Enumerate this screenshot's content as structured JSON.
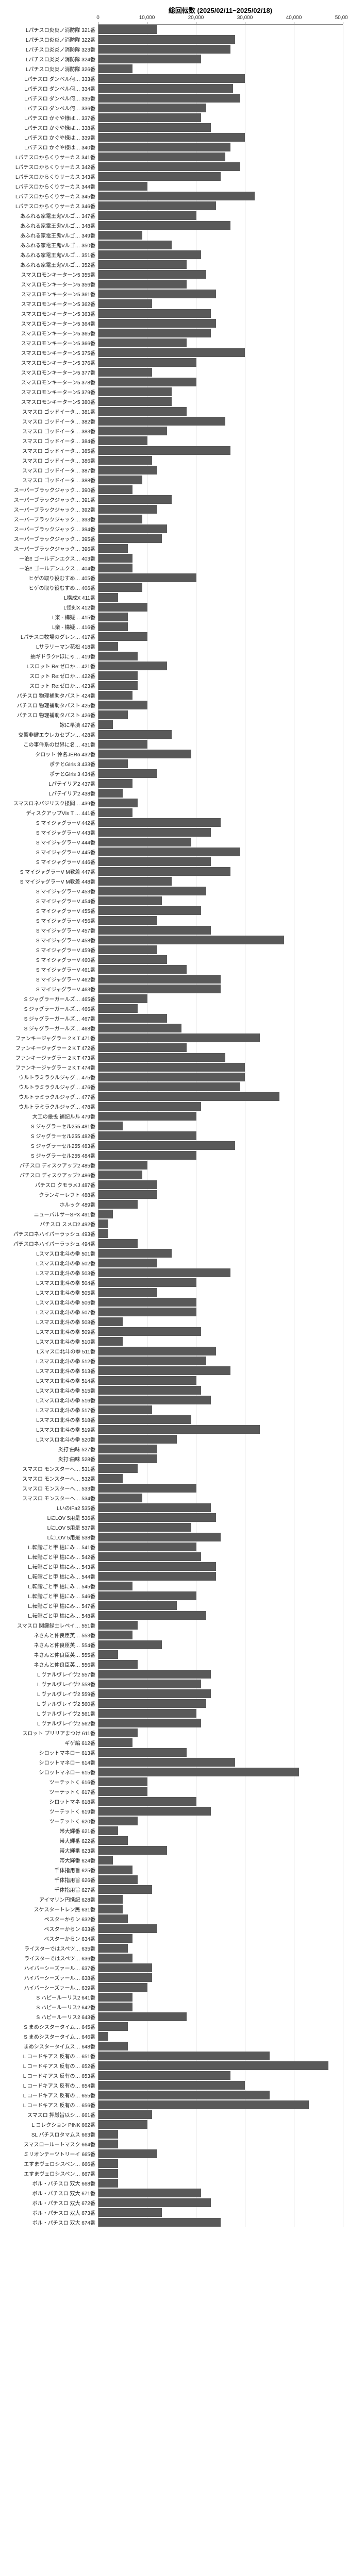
{
  "chart": {
    "type": "bar",
    "title": "総回転数 (2025/02/11~2025/02/18)",
    "title_fontsize": 13,
    "xmin": 0,
    "xmax": 50000,
    "xtick_step": 10000,
    "xticks": [
      0,
      10000,
      20000,
      30000,
      40000,
      50000
    ],
    "bar_color": "#595959",
    "background_color": "#ffffff",
    "grid_color": "#dddddd",
    "axis_color": "#888888",
    "label_fontsize": 10,
    "tick_fontsize": 10,
    "rows": [
      {
        "label": "Lパチスロ炎炎ノ消防隊 321番",
        "value": 12000
      },
      {
        "label": "Lパチスロ炎炎ノ消防隊 322番",
        "value": 28000
      },
      {
        "label": "Lパチスロ炎炎ノ消防隊 323番",
        "value": 27000
      },
      {
        "label": "Lパチスロ炎炎ノ消防隊 324番",
        "value": 21000
      },
      {
        "label": "Lパチスロ炎炎ノ消防隊 326番",
        "value": 7000
      },
      {
        "label": "Lパチスロ ダンベル何… 333番",
        "value": 30000
      },
      {
        "label": "Lパチスロ ダンベル何… 334番",
        "value": 27500
      },
      {
        "label": "Lパチスロ ダンベル何… 335番",
        "value": 29000
      },
      {
        "label": "Lパチスロ ダンベル何… 336番",
        "value": 22000
      },
      {
        "label": "Lパチスロ かぐや様は… 337番",
        "value": 21000
      },
      {
        "label": "Lパチスロ かぐや様は… 338番",
        "value": 23000
      },
      {
        "label": "Lパチスロ かぐや様は… 339番",
        "value": 30000
      },
      {
        "label": "Lパチスロ かぐや様は… 340番",
        "value": 27000
      },
      {
        "label": "Lパチスロからくりサーカス 341番",
        "value": 26000
      },
      {
        "label": "Lパチスロからくりサーカス 342番",
        "value": 29000
      },
      {
        "label": "Lパチスロからくりサーカス 343番",
        "value": 25000
      },
      {
        "label": "Lパチスロからくりサーカス 344番",
        "value": 10000
      },
      {
        "label": "Lパチスロからくりサーカス 345番",
        "value": 32000
      },
      {
        "label": "Lパチスロからくりサーカス 346番",
        "value": 24000
      },
      {
        "label": "あふれる家電王鬼Vルゴ… 347番",
        "value": 20000
      },
      {
        "label": "あふれる家電王鬼Vルゴ… 348番",
        "value": 27000
      },
      {
        "label": "あふれる家電王鬼Vルゴ… 349番",
        "value": 9000
      },
      {
        "label": "あふれる家電王鬼Vルゴ… 350番",
        "value": 15000
      },
      {
        "label": "あふれる家電王鬼Vルゴ… 351番",
        "value": 21000
      },
      {
        "label": "あふれる家電王鬼Vルゴ… 352番",
        "value": 18000
      },
      {
        "label": "スマスロモンキーターン5 355番",
        "value": 22000
      },
      {
        "label": "スマスロモンキーターン5 356番",
        "value": 18000
      },
      {
        "label": "スマスロモンキーターン5 361番",
        "value": 24000
      },
      {
        "label": "スマスロモンキーターン5 362番",
        "value": 11000
      },
      {
        "label": "スマスロモンキーターン5 363番",
        "value": 23000
      },
      {
        "label": "スマスロモンキーターン5 364番",
        "value": 24000
      },
      {
        "label": "スマスロモンキーターン5 365番",
        "value": 23000
      },
      {
        "label": "スマスロモンキーターン5 366番",
        "value": 18000
      },
      {
        "label": "スマスロモンキーターン5 375番",
        "value": 30000
      },
      {
        "label": "スマスロモンキーターン5 376番",
        "value": 20000
      },
      {
        "label": "スマスロモンキーターン5 377番",
        "value": 11000
      },
      {
        "label": "スマスロモンキーターン5 378番",
        "value": 20000
      },
      {
        "label": "スマスロモンキーターン5 379番",
        "value": 15000
      },
      {
        "label": "スマスロモンキーターン5 380番",
        "value": 15000
      },
      {
        "label": "スマスロ ゴッドイータ… 381番",
        "value": 18000
      },
      {
        "label": "スマスロ ゴッドイータ… 382番",
        "value": 26000
      },
      {
        "label": "スマスロ ゴッドイータ… 383番",
        "value": 14000
      },
      {
        "label": "スマスロ ゴッドイータ… 384番",
        "value": 10000
      },
      {
        "label": "スマスロ ゴッドイータ… 385番",
        "value": 27000
      },
      {
        "label": "スマスロ ゴッドイータ… 386番",
        "value": 11000
      },
      {
        "label": "スマスロ ゴッドイータ… 387番",
        "value": 12000
      },
      {
        "label": "スマスロ ゴッドイータ… 388番",
        "value": 9000
      },
      {
        "label": "スーパーブラックジャック… 390番",
        "value": 7000
      },
      {
        "label": "スーパーブラックジャック… 391番",
        "value": 15000
      },
      {
        "label": "スーパーブラックジャック… 392番",
        "value": 12000
      },
      {
        "label": "スーパーブラックジャック… 393番",
        "value": 9000
      },
      {
        "label": "スーパーブラックジャック… 394番",
        "value": 14000
      },
      {
        "label": "スーパーブラックジャック… 395番",
        "value": 13000
      },
      {
        "label": "スーパーブラックジャック… 396番",
        "value": 6000
      },
      {
        "label": "一泊!! ゴールデンエクス… 403番",
        "value": 7000
      },
      {
        "label": "一泊!! ゴールデンエクス… 404番",
        "value": 7000
      },
      {
        "label": "ヒゲの取り役むすめ… 405番",
        "value": 20000
      },
      {
        "label": "ヒゲの取り役むすめ… 406番",
        "value": 9000
      },
      {
        "label": "L構成X 411番",
        "value": 4000
      },
      {
        "label": "L怪剣X 412番",
        "value": 10000
      },
      {
        "label": "L楽 - 構疑… 415番",
        "value": 6000
      },
      {
        "label": "L楽 - 構疑… 416番",
        "value": 6000
      },
      {
        "label": "Lパチスロ牧場のグレン… 417番",
        "value": 10000
      },
      {
        "label": "Lサラリーマン花松 418番",
        "value": 4000
      },
      {
        "label": "抽ギドラクPほにゃ… 419番",
        "value": 8000
      },
      {
        "label": "Lスロット Re:ゼロか… 421番",
        "value": 14000
      },
      {
        "label": "スロット Re:ゼロか… 422番",
        "value": 8000
      },
      {
        "label": "スロット Re:ゼロか… 423番",
        "value": 8000
      },
      {
        "label": "パチスロ 物理補助タバスト 424番",
        "value": 7000
      },
      {
        "label": "パチスロ 物理補助タバスト 425番",
        "value": 10000
      },
      {
        "label": "パチスロ 物理補助タバスト 426番",
        "value": 6000
      },
      {
        "label": "嫁に早漬 427番",
        "value": 3000
      },
      {
        "label": "交響非鍵エウレカセブン… 428番",
        "value": 15000
      },
      {
        "label": "この事件系の世界に名… 431番",
        "value": 10000
      },
      {
        "label": "タロット 怜名JERo 432番",
        "value": 19000
      },
      {
        "label": "ポテとGIrls 3 433番",
        "value": 6000
      },
      {
        "label": "ポテとGIrls 3 434番",
        "value": 12000
      },
      {
        "label": "Lパテイリア2 437番",
        "value": 7000
      },
      {
        "label": "Lパテイリア2 438番",
        "value": 5000
      },
      {
        "label": "スマスロネバジリスク楼閣… 439番",
        "value": 8000
      },
      {
        "label": "ディスクアップVIs T … 441番",
        "value": 7000
      },
      {
        "label": "S マイジャグラーV 442番",
        "value": 25000
      },
      {
        "label": "S マイジャグラーV 443番",
        "value": 23000
      },
      {
        "label": "S マイジャグラーV 444番",
        "value": 19000
      },
      {
        "label": "S マイジャグラーV 445番",
        "value": 29000
      },
      {
        "label": "S マイジャグラーV 446番",
        "value": 23000
      },
      {
        "label": "S マイジャグラーV M教差 447番",
        "value": 27000
      },
      {
        "label": "S マイジャグラーV M教差 448番",
        "value": 15000
      },
      {
        "label": "S マイジャグラーV 453番",
        "value": 22000
      },
      {
        "label": "S マイジャグラーV 454番",
        "value": 13000
      },
      {
        "label": "S マイジャグラーV 455番",
        "value": 21000
      },
      {
        "label": "S マイジャグラーV 456番",
        "value": 12000
      },
      {
        "label": "S マイジャグラーV 457番",
        "value": 23000
      },
      {
        "label": "S マイジャグラーV 458番",
        "value": 38000
      },
      {
        "label": "S マイジャグラーV 459番",
        "value": 12000
      },
      {
        "label": "S マイジャグラーV 460番",
        "value": 14000
      },
      {
        "label": "S マイジャグラーV 461番",
        "value": 18000
      },
      {
        "label": "S マイジャグラーV 462番",
        "value": 25000
      },
      {
        "label": "S マイジャグラーV 463番",
        "value": 25000
      },
      {
        "label": "S ジャグラーガールズ… 465番",
        "value": 10000
      },
      {
        "label": "S ジャグラーガールズ… 466番",
        "value": 8000
      },
      {
        "label": "S ジャグラーガールズ… 467番",
        "value": 14000
      },
      {
        "label": "S ジャグラーガールズ… 468番",
        "value": 17000
      },
      {
        "label": "ファンキージャグラー 2 K T 471番",
        "value": 33000
      },
      {
        "label": "ファンキージャグラー 2 K T 472番",
        "value": 18000
      },
      {
        "label": "ファンキージャグラー 2 K T 473番",
        "value": 26000
      },
      {
        "label": "ファンキージャグラー 2 K T 474番",
        "value": 30000
      },
      {
        "label": "ウルトラミラクルジャグ… 475番",
        "value": 30000
      },
      {
        "label": "ウルトラミラクルジャグ… 476番",
        "value": 29000
      },
      {
        "label": "ウルトラミラクルジャグ… 477番",
        "value": 37000
      },
      {
        "label": "ウルトラミラクルジャグ… 478番",
        "value": 21000
      },
      {
        "label": "大工の厳戋 補記ルル 479番",
        "value": 20000
      },
      {
        "label": "S ジャグラーセル255 481番",
        "value": 5000
      },
      {
        "label": "S ジャグラーセル255 482番",
        "value": 20000
      },
      {
        "label": "S ジャグラーセル255 483番",
        "value": 28000
      },
      {
        "label": "S ジャグラーセル255 484番",
        "value": 20000
      },
      {
        "label": "パチスロ ディスクアップ2 485番",
        "value": 10000
      },
      {
        "label": "パチスロ ディスクアップ2 486番",
        "value": 9000
      },
      {
        "label": "パチスロ クモラメJ 487番",
        "value": 12000
      },
      {
        "label": "クランキーレフト 488番",
        "value": 12000
      },
      {
        "label": "ホルック 489番",
        "value": 8000
      },
      {
        "label": "ニューパルサーSPX 491番",
        "value": 3000
      },
      {
        "label": "パチスロ スメロ2 492番",
        "value": 2000
      },
      {
        "label": "パチスロネハイパーラッシュ 493番",
        "value": 2000
      },
      {
        "label": "パチスロネハイパーラッシュ 494番",
        "value": 8000
      },
      {
        "label": "Lスマスロ北斗の拳 501番",
        "value": 15000
      },
      {
        "label": "Lスマスロ北斗の拳 502番",
        "value": 12000
      },
      {
        "label": "Lスマスロ北斗の拳 503番",
        "value": 27000
      },
      {
        "label": "Lスマスロ北斗の拳 504番",
        "value": 20000
      },
      {
        "label": "Lスマスロ北斗の拳 505番",
        "value": 12000
      },
      {
        "label": "Lスマスロ北斗の拳 506番",
        "value": 20000
      },
      {
        "label": "Lスマスロ北斗の拳 507番",
        "value": 20000
      },
      {
        "label": "Lスマスロ北斗の拳 508番",
        "value": 5000
      },
      {
        "label": "Lスマスロ北斗の拳 509番",
        "value": 21000
      },
      {
        "label": "Lスマスロ北斗の拳 510番",
        "value": 5000
      },
      {
        "label": "Lスマスロ北斗の拳 511番",
        "value": 24000
      },
      {
        "label": "Lスマスロ北斗の拳 512番",
        "value": 22000
      },
      {
        "label": "Lスマスロ北斗の拳 513番",
        "value": 27000
      },
      {
        "label": "Lスマスロ北斗の拳 514番",
        "value": 20000
      },
      {
        "label": "Lスマスロ北斗の拳 515番",
        "value": 21000
      },
      {
        "label": "Lスマスロ北斗の拳 516番",
        "value": 23000
      },
      {
        "label": "Lスマスロ北斗の拳 517番",
        "value": 11000
      },
      {
        "label": "Lスマスロ北斗の拳 518番",
        "value": 19000
      },
      {
        "label": "Lスマスロ北斗の拳 519番",
        "value": 33000
      },
      {
        "label": "Lスマスロ北斗の拳 520番",
        "value": 16000
      },
      {
        "label": "炎打:曲味 527番",
        "value": 12000
      },
      {
        "label": "炎打:曲味 528番",
        "value": 12000
      },
      {
        "label": "スマスロ モンスターへ… 531番",
        "value": 8000
      },
      {
        "label": "スマスロ モンスターへ… 532番",
        "value": 5000
      },
      {
        "label": "スマスロ モンスターへ… 533番",
        "value": 20000
      },
      {
        "label": "スマスロ モンスターへ… 534番",
        "value": 9000
      },
      {
        "label": "LいのIFa2 535番",
        "value": 23000
      },
      {
        "label": "LにLOV 5用是 536番",
        "value": 24000
      },
      {
        "label": "LにLOV 5用是 537番",
        "value": 19000
      },
      {
        "label": "LにLOV 5用是 538番",
        "value": 25000
      },
      {
        "label": "L.転階ごと甲 枯にみ… 541番",
        "value": 20000
      },
      {
        "label": "L.転階ごと甲 枯にみ… 542番",
        "value": 21000
      },
      {
        "label": "L.転階ごと甲 枯にみ… 543番",
        "value": 24000
      },
      {
        "label": "L.転階ごと甲 枯にみ… 544番",
        "value": 24000
      },
      {
        "label": "L.転階ごと甲 枯にみ… 545番",
        "value": 7000
      },
      {
        "label": "L.転階ごと甲 枯にみ… 546番",
        "value": 20000
      },
      {
        "label": "L.転階ごと甲 枯にみ… 547番",
        "value": 16000
      },
      {
        "label": "L.転階ごと甲 枯にみ… 548番",
        "value": 22000
      },
      {
        "label": "スマスロ 関鍵録士レベイ… 551番",
        "value": 8000
      },
      {
        "label": "ネさんと仲良臣英… 553番",
        "value": 7000
      },
      {
        "label": "ネさんと仲良臣英… 554番",
        "value": 13000
      },
      {
        "label": "ネさんと仲良臣英… 555番",
        "value": 4000
      },
      {
        "label": "ネさんと仲良臣英… 556番",
        "value": 8000
      },
      {
        "label": "L ヴァルヴレイヴ2 557番",
        "value": 23000
      },
      {
        "label": "L ヴァルヴレイヴ2 558番",
        "value": 21000
      },
      {
        "label": "L ヴァルヴレイヴ2 559番",
        "value": 23000
      },
      {
        "label": "L ヴァルヴレイヴ2 560番",
        "value": 22000
      },
      {
        "label": "L ヴァルヴレイヴ2 561番",
        "value": 20000
      },
      {
        "label": "L ヴァルヴレイヴ2 562番",
        "value": 21000
      },
      {
        "label": "スロット  プリリアまつけ 611番",
        "value": 8000
      },
      {
        "label": "ギゲ編 612番",
        "value": 7000
      },
      {
        "label": "シロットマネロー 613番",
        "value": 18000
      },
      {
        "label": "シロットマネロー 614番",
        "value": 28000
      },
      {
        "label": "シロットマネロー 615番",
        "value": 41000
      },
      {
        "label": "ツーテットく 616番",
        "value": 10000
      },
      {
        "label": "ツーテットく 617番",
        "value": 10000
      },
      {
        "label": "シロットマネ 618番",
        "value": 20000
      },
      {
        "label": "ツーテットく 619番",
        "value": 23000
      },
      {
        "label": "ツーテットく 620番",
        "value": 8000
      },
      {
        "label": "帯大輝番 621番",
        "value": 4000
      },
      {
        "label": "帯大輝番 622番",
        "value": 6000
      },
      {
        "label": "帯大輝番 623番",
        "value": 14000
      },
      {
        "label": "帯大輝番 624番",
        "value": 3000
      },
      {
        "label": "千体指用旨 625番",
        "value": 7000
      },
      {
        "label": "千体指用旨 626番",
        "value": 8000
      },
      {
        "label": "千体指用旨 627番",
        "value": 11000
      },
      {
        "label": "アイマリン円携記 628番",
        "value": 5000
      },
      {
        "label": "スケスタートレン民 631番",
        "value": 5000
      },
      {
        "label": "ペスターからン 632番",
        "value": 6000
      },
      {
        "label": "ペスターからン 633番",
        "value": 12000
      },
      {
        "label": "ペスターからン 634番",
        "value": 7000
      },
      {
        "label": "ライスターではスペツ… 635番",
        "value": 6000
      },
      {
        "label": "ライスターではスペツ… 636番",
        "value": 7000
      },
      {
        "label": "ハイバーシーズァール… 637番",
        "value": 11000
      },
      {
        "label": "ハイバーシーズァール… 638番",
        "value": 11000
      },
      {
        "label": "ハイバーシーズァール… 639番",
        "value": 10000
      },
      {
        "label": "S ハピールーリス2 641番",
        "value": 7000
      },
      {
        "label": "S ハピールーリス2 642番",
        "value": 7000
      },
      {
        "label": "S ハピールーリス2 643番",
        "value": 18000
      },
      {
        "label": "S まめシスタータイム… 645番",
        "value": 6000
      },
      {
        "label": "S まめシスタータイム… 646番",
        "value": 2000
      },
      {
        "label": "まめシスタータイムス… 648番",
        "value": 6000
      },
      {
        "label": "L コードキアス 反有の… 651番",
        "value": 35000
      },
      {
        "label": "L コードキアス 反有の… 652番",
        "value": 47000
      },
      {
        "label": "L コードキアス 反有の… 653番",
        "value": 27000
      },
      {
        "label": "L コードキアス 反有の… 654番",
        "value": 30000
      },
      {
        "label": "L コードキアス 反有の… 655番",
        "value": 35000
      },
      {
        "label": "L コードキアス 反有の… 656番",
        "value": 43000
      },
      {
        "label": "スマスロ 押厳旨以シ… 661番",
        "value": 11000
      },
      {
        "label": "L コレクション PINK 662番",
        "value": 10000
      },
      {
        "label": "SL バチスロタマムス 663番",
        "value": 4000
      },
      {
        "label": "スマスロールートマスク 664番",
        "value": 4000
      },
      {
        "label": "ミリオンテーツトリーイ 665番",
        "value": 12000
      },
      {
        "label": "エすまヴェロシスペン… 666番",
        "value": 4000
      },
      {
        "label": "エすまヴェロシスペン… 667番",
        "value": 4000
      },
      {
        "label": "ボル・パチスロ 双大 668番",
        "value": 4000
      },
      {
        "label": "ボル・パチスロ 双大 671番",
        "value": 21000
      },
      {
        "label": "ボル・パチスロ 双大 672番",
        "value": 23000
      },
      {
        "label": "ボル・パチスロ 双大 673番",
        "value": 13000
      },
      {
        "label": "ボル・パチスロ 双大 674番",
        "value": 25000
      }
    ]
  }
}
